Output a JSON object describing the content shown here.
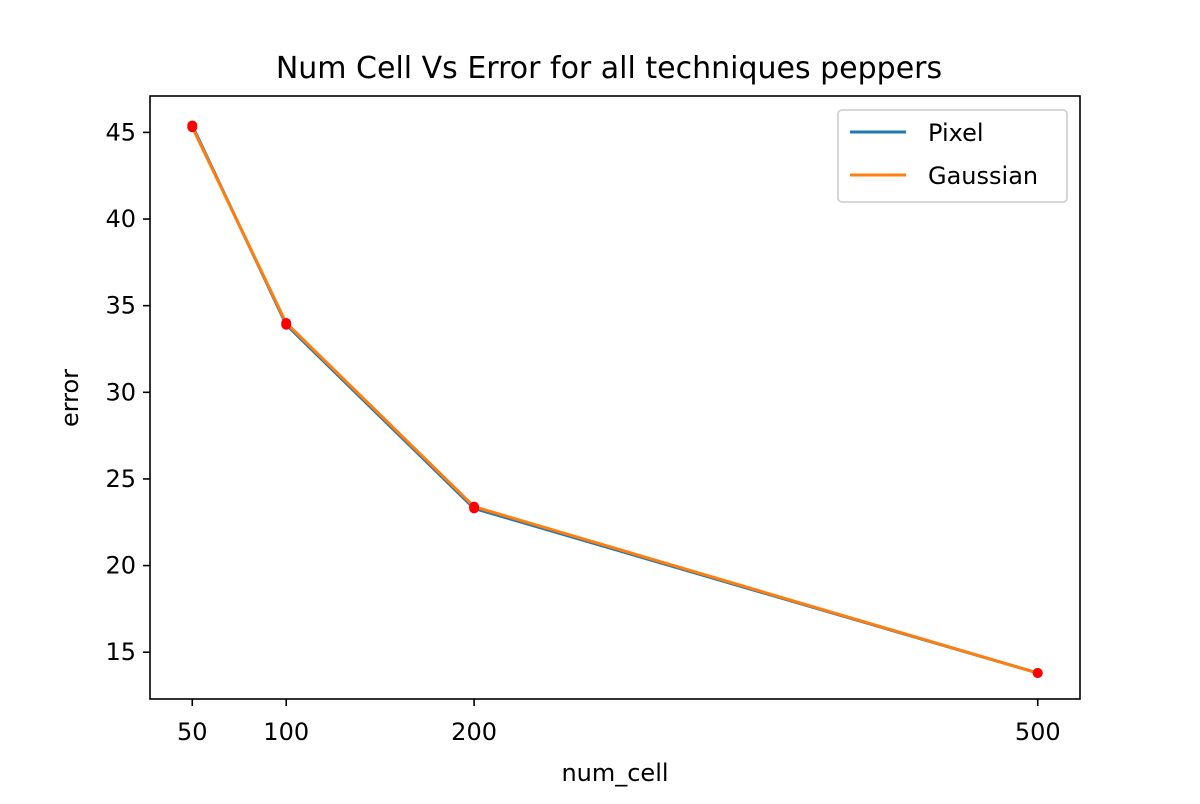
{
  "chart_data": {
    "type": "line",
    "title": "Num Cell Vs Error for all techniques peppers",
    "xlabel": "num_cell",
    "ylabel": "error",
    "x": [
      50,
      100,
      200,
      500
    ],
    "xticks": [
      50,
      100,
      200,
      500
    ],
    "yticks": [
      15,
      20,
      25,
      30,
      35,
      40,
      45
    ],
    "xlim": [
      27.5,
      522.5
    ],
    "ylim": [
      12.3,
      47.1
    ],
    "grid": false,
    "legend_position": "upper right",
    "series": [
      {
        "name": "Pixel",
        "values": [
          45.4,
          33.9,
          23.3,
          13.8
        ],
        "color": "#1f77b4"
      },
      {
        "name": "Gaussian",
        "values": [
          45.3,
          34.0,
          23.4,
          13.8
        ],
        "color": "#ff7f0e"
      }
    ],
    "markers": [
      {
        "x": 50,
        "y": 45.4
      },
      {
        "x": 50,
        "y": 45.3
      },
      {
        "x": 100,
        "y": 33.9
      },
      {
        "x": 100,
        "y": 34.0
      },
      {
        "x": 200,
        "y": 23.3
      },
      {
        "x": 200,
        "y": 23.4
      },
      {
        "x": 500,
        "y": 13.8
      },
      {
        "x": 500,
        "y": 13.8
      }
    ],
    "marker_color": "#ff0000"
  }
}
